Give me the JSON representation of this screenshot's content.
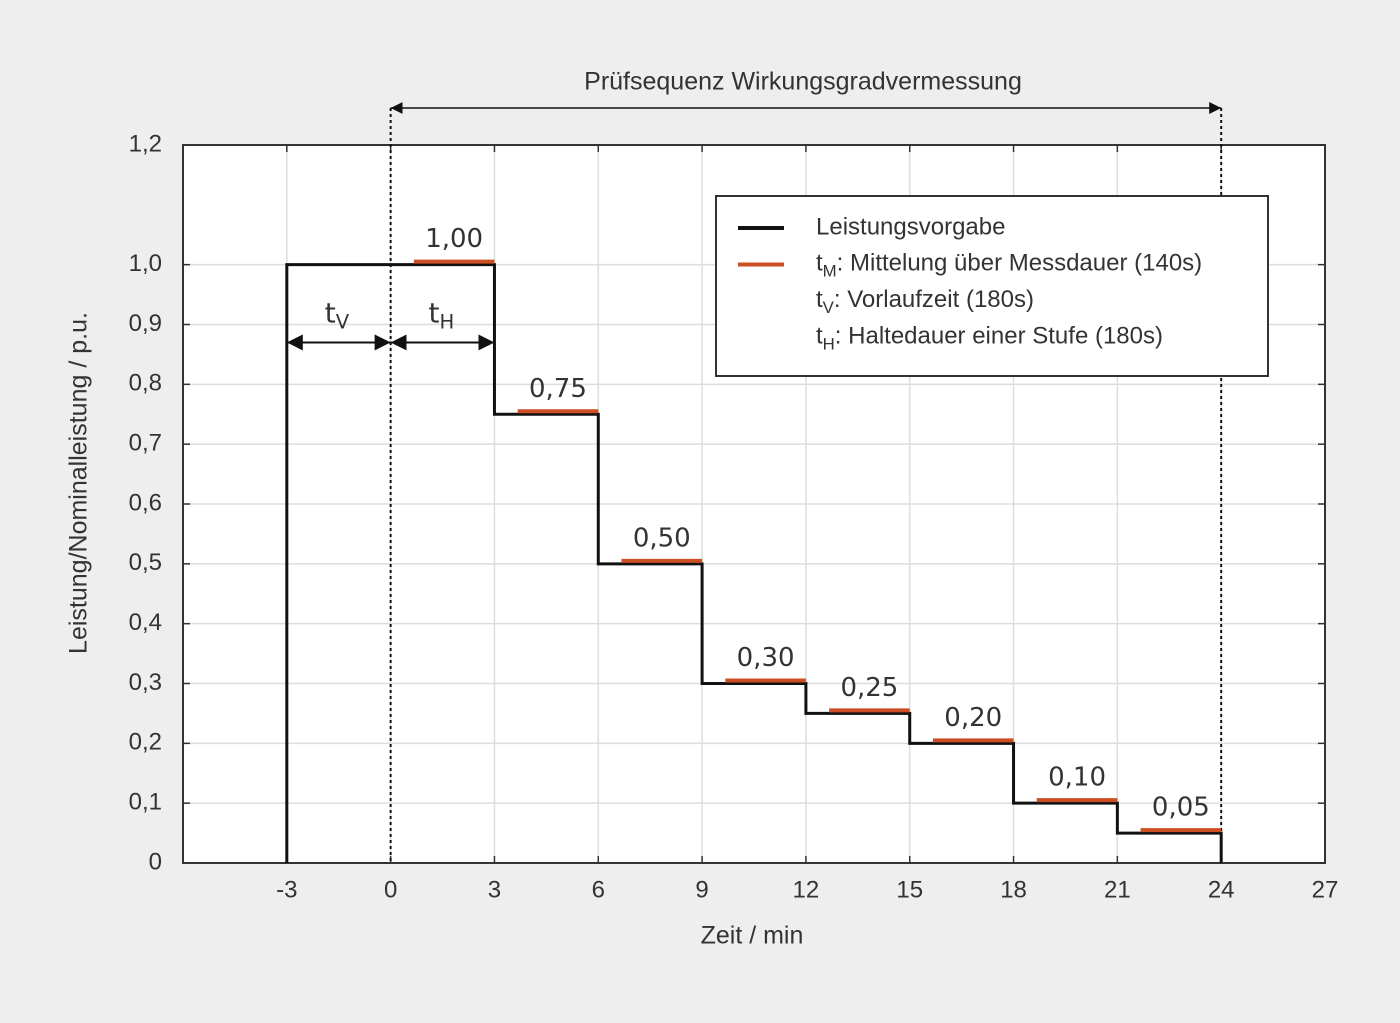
{
  "chart_data": {
    "type": "step",
    "title": "Prüfsequenz Wirkungsgradvermessung",
    "title_span": [
      0,
      24
    ],
    "x_label": "Zeit / min",
    "y_label": "Leistung/Nominalleistung / p.u.",
    "xlim": [
      -6,
      27
    ],
    "xticks": [
      -3,
      0,
      3,
      6,
      9,
      12,
      15,
      18,
      21,
      24,
      27
    ],
    "ylim": [
      0,
      1.2
    ],
    "yticks": [
      0,
      {
        "value": 0.1,
        "label": "0,1"
      },
      {
        "value": 0.2,
        "label": "0,2"
      },
      {
        "value": 0.3,
        "label": "0,3"
      },
      {
        "value": 0.4,
        "label": "0,4"
      },
      {
        "value": 0.5,
        "label": "0,5"
      },
      {
        "value": 0.6,
        "label": "0,6"
      },
      {
        "value": 0.7,
        "label": "0,7"
      },
      {
        "value": 0.8,
        "label": "0,8"
      },
      {
        "value": 0.9,
        "label": "0,9"
      },
      {
        "value": 1.0,
        "label": "1,0"
      },
      {
        "value": 1.2,
        "label": "1,2"
      }
    ],
    "grid": true,
    "legend": "upper right",
    "series": [
      {
        "name": "Leistungsvorgabe",
        "color": "#111111",
        "x": [
          -3,
          -3,
          3,
          3,
          6,
          6,
          9,
          9,
          12,
          12,
          15,
          15,
          18,
          18,
          21,
          21,
          24,
          24
        ],
        "values": [
          0,
          1,
          1,
          0.75,
          0.75,
          0.5,
          0.5,
          0.3,
          0.3,
          0.25,
          0.25,
          0.2,
          0.2,
          0.1,
          0.1,
          0.05,
          0.05,
          0
        ]
      },
      {
        "name": {
          "symbol": "t",
          "sub": "M",
          "text": ": Mittelung über Messdauer (140s)"
        },
        "color": "#cc4f24",
        "starts": [
          0.67,
          3.67,
          6.67,
          9.67,
          12.67,
          15.67,
          18.67,
          21.67
        ],
        "ends": [
          3,
          6,
          9,
          12,
          15,
          18,
          21,
          24
        ],
        "values": [
          1,
          0.75,
          0.5,
          0.3,
          0.25,
          0.2,
          0.1,
          0.05
        ],
        "value_labels": [
          "1,00",
          "0,75",
          "0,50",
          "0,30",
          "0,25",
          "0,20",
          "0,10",
          "0,05"
        ]
      }
    ],
    "notes": [
      {
        "symbol": "t",
        "sub": "V",
        "text": ": Vorlaufzeit (180s)"
      },
      {
        "symbol": "t",
        "sub": "H",
        "text": ": Haltedauer einer Stufe (180s)"
      }
    ],
    "spans": [
      {
        "symbol": "t",
        "sub": "V",
        "x": [
          -3,
          0
        ],
        "y": 0.87
      },
      {
        "symbol": "t",
        "sub": "H",
        "x": [
          0,
          3
        ],
        "y": 0.87
      }
    ]
  }
}
